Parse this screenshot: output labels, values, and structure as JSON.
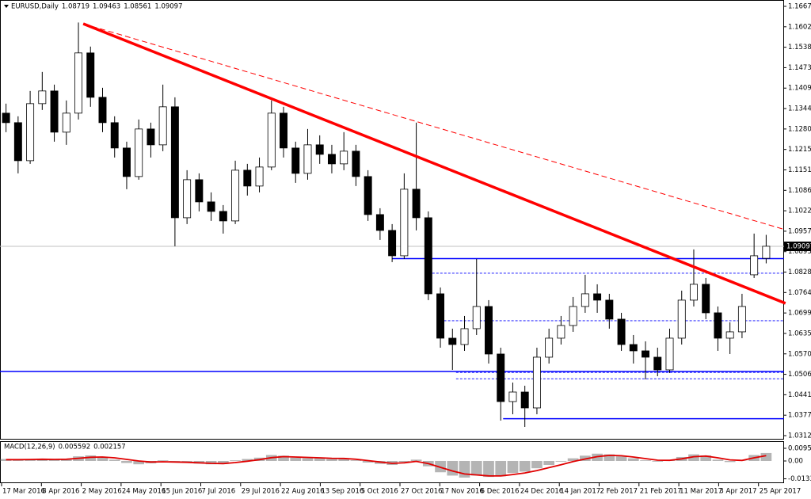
{
  "chart_data": {
    "type": "candlestick",
    "symbol": "EURUSD,Daily",
    "ohlc": [
      1.08719,
      1.09463,
      1.08561,
      1.09097
    ],
    "x_labels": [
      "17 Mar 2016",
      "8 Apr 2016",
      "2 May 2016",
      "24 May 2016",
      "15 Jun 2016",
      "7 Jul 2016",
      "29 Jul 2016",
      "22 Aug 2016",
      "13 Sep 2016",
      "5 Oct 2016",
      "27 Oct 2016",
      "17 Nov 2016",
      "6 Dec 2016",
      "24 Dec 2016",
      "14 Jan 2017",
      "2 Feb 2017",
      "21 Feb 2017",
      "11 Mar 2017",
      "3 Apr 2017",
      "25 Apr 2017"
    ],
    "candles": [
      [
        1.133,
        1.136,
        1.127,
        1.13
      ],
      [
        1.13,
        1.132,
        1.114,
        1.118
      ],
      [
        1.118,
        1.14,
        1.117,
        1.136
      ],
      [
        1.136,
        1.146,
        1.134,
        1.14
      ],
      [
        1.14,
        1.142,
        1.124,
        1.127
      ],
      [
        1.127,
        1.137,
        1.123,
        1.133
      ],
      [
        1.133,
        1.1616,
        1.131,
        1.152
      ],
      [
        1.152,
        1.154,
        1.135,
        1.138
      ],
      [
        1.138,
        1.141,
        1.127,
        1.13
      ],
      [
        1.13,
        1.132,
        1.119,
        1.122
      ],
      [
        1.122,
        1.124,
        1.109,
        1.113
      ],
      [
        1.113,
        1.131,
        1.112,
        1.128
      ],
      [
        1.128,
        1.13,
        1.119,
        1.123
      ],
      [
        1.123,
        1.142,
        1.121,
        1.135
      ],
      [
        1.135,
        1.138,
        1.091,
        1.1
      ],
      [
        1.1,
        1.115,
        1.098,
        1.112
      ],
      [
        1.112,
        1.114,
        1.102,
        1.105
      ],
      [
        1.105,
        1.108,
        1.099,
        1.102
      ],
      [
        1.102,
        1.104,
        1.095,
        1.099
      ],
      [
        1.099,
        1.118,
        1.098,
        1.115
      ],
      [
        1.115,
        1.117,
        1.107,
        1.11
      ],
      [
        1.11,
        1.119,
        1.108,
        1.116
      ],
      [
        1.116,
        1.137,
        1.115,
        1.133
      ],
      [
        1.133,
        1.135,
        1.119,
        1.122
      ],
      [
        1.122,
        1.124,
        1.111,
        1.114
      ],
      [
        1.114,
        1.128,
        1.112,
        1.123
      ],
      [
        1.123,
        1.126,
        1.117,
        1.12
      ],
      [
        1.12,
        1.123,
        1.114,
        1.117
      ],
      [
        1.117,
        1.127,
        1.115,
        1.121
      ],
      [
        1.121,
        1.123,
        1.11,
        1.113
      ],
      [
        1.113,
        1.115,
        1.099,
        1.101
      ],
      [
        1.101,
        1.103,
        1.093,
        1.096
      ],
      [
        1.096,
        1.098,
        1.086,
        1.088
      ],
      [
        1.088,
        1.114,
        1.087,
        1.109
      ],
      [
        1.109,
        1.13,
        1.096,
        1.1
      ],
      [
        1.1,
        1.102,
        1.074,
        1.076
      ],
      [
        1.076,
        1.078,
        1.059,
        1.062
      ],
      [
        1.062,
        1.065,
        1.052,
        1.06
      ],
      [
        1.06,
        1.069,
        1.058,
        1.065
      ],
      [
        1.065,
        1.087,
        1.063,
        1.072
      ],
      [
        1.072,
        1.074,
        1.054,
        1.057
      ],
      [
        1.057,
        1.059,
        1.036,
        1.042
      ],
      [
        1.042,
        1.048,
        1.038,
        1.045
      ],
      [
        1.045,
        1.047,
        1.034,
        1.04
      ],
      [
        1.04,
        1.059,
        1.038,
        1.056
      ],
      [
        1.056,
        1.065,
        1.054,
        1.062
      ],
      [
        1.062,
        1.069,
        1.06,
        1.066
      ],
      [
        1.066,
        1.075,
        1.064,
        1.072
      ],
      [
        1.072,
        1.082,
        1.07,
        1.076
      ],
      [
        1.076,
        1.079,
        1.07,
        1.074
      ],
      [
        1.074,
        1.076,
        1.065,
        1.068
      ],
      [
        1.068,
        1.07,
        1.058,
        1.06
      ],
      [
        1.06,
        1.063,
        1.054,
        1.058
      ],
      [
        1.058,
        1.061,
        1.049,
        1.056
      ],
      [
        1.056,
        1.059,
        1.05,
        1.052
      ],
      [
        1.052,
        1.065,
        1.051,
        1.062
      ],
      [
        1.062,
        1.077,
        1.06,
        1.074
      ],
      [
        1.074,
        1.09,
        1.072,
        1.079
      ],
      [
        1.079,
        1.081,
        1.068,
        1.07
      ],
      [
        1.07,
        1.072,
        1.058,
        1.062
      ],
      [
        1.062,
        1.067,
        1.057,
        1.064
      ],
      [
        1.064,
        1.076,
        1.062,
        1.072
      ],
      [
        1.082,
        1.095,
        1.081,
        1.088
      ],
      [
        1.0872,
        1.0946,
        1.0856,
        1.091
      ]
    ],
    "ylim": [
      1.03,
      1.1687
    ],
    "yticks": [
      {
        "value": 1.1667,
        "label": "1.16670"
      },
      1.16025,
      {
        "value": 1.1538,
        "label": "1.15380"
      },
      1.14735,
      {
        "value": 1.1409,
        "label": "1.14090"
      },
      1.13445,
      {
        "value": 1.128,
        "label": "1.12800"
      },
      1.12155,
      {
        "value": 1.1151,
        "label": "1.11510"
      },
      1.10865,
      {
        "value": 1.1022,
        "label": "1.10220"
      },
      1.09575,
      {
        "value": 1.0893,
        "label": "1.08930"
      },
      1.08285,
      {
        "value": 1.0764,
        "label": "1.07640"
      },
      1.06995,
      {
        "value": 1.0635,
        "label": "1.06350"
      },
      1.05705,
      {
        "value": 1.0506,
        "label": "1.05060"
      },
      1.04415,
      {
        "value": 1.0377,
        "label": "1.03770"
      },
      1.03125
    ],
    "trendlines": [
      {
        "from": [
          6.4,
          1.1612
        ],
        "to": [
          64.6,
          1.073
        ],
        "color": "#ff0000",
        "style": "solid"
      },
      {
        "from": [
          6.4,
          1.1612
        ],
        "to": [
          64.6,
          1.0962
        ],
        "color": "#ff0000",
        "style": "dashed"
      }
    ],
    "levels": [
      {
        "price": 1.0871,
        "from": 32,
        "color": "#0000ff",
        "style": "solid"
      },
      {
        "price": 1.0515,
        "from": -0.5,
        "color": "#0000ff",
        "style": "solid"
      },
      {
        "price": 1.0366,
        "from": 41.2,
        "color": "#0000ff",
        "style": "solid"
      },
      {
        "price": 1.0825,
        "from": 35,
        "color": "#0000ff",
        "style": "dashed"
      },
      {
        "price": 1.0675,
        "from": 36.3,
        "color": "#0000ff",
        "style": "dashed"
      },
      {
        "price": 1.0512,
        "from": 37.3,
        "color": "#0000ff",
        "style": "dashed"
      },
      {
        "price": 1.0492,
        "from": 37.3,
        "color": "#0000ff",
        "style": "dashed"
      }
    ],
    "macd": {
      "name": "MACD(12,26,9)",
      "main_value": 0.005592,
      "signal_value": 0.002157,
      "histogram": [
        0.0015,
        0.0008,
        0.0012,
        0.0018,
        0.001,
        0.0014,
        0.0035,
        0.0042,
        0.003,
        0.001,
        -0.0015,
        -0.0025,
        -0.0018,
        0.0005,
        -0.001,
        -0.0012,
        -0.002,
        -0.0025,
        -0.0022,
        0.0005,
        0.0015,
        0.0025,
        0.0045,
        0.004,
        0.0025,
        0.0022,
        0.002,
        0.0015,
        0.0018,
        0.0005,
        -0.0012,
        -0.0022,
        -0.003,
        -0.0008,
        0.001,
        -0.004,
        -0.0085,
        -0.011,
        -0.0125,
        -0.011,
        -0.012,
        -0.0115,
        -0.009,
        -0.008,
        -0.0055,
        -0.003,
        -0.0005,
        0.002,
        0.004,
        0.0055,
        0.005,
        0.0035,
        0.002,
        0.0005,
        -0.0005,
        0.0005,
        0.003,
        0.005,
        0.0042,
        0.001,
        -0.0008,
        0.0002,
        0.0045,
        0.006
      ],
      "signal": [
        0.001,
        0.001,
        0.0011,
        0.0013,
        0.0012,
        0.0013,
        0.002,
        0.0028,
        0.003,
        0.0024,
        0.0012,
        0.0,
        -0.0008,
        -0.0006,
        -0.0008,
        -0.001,
        -0.0014,
        -0.0018,
        -0.002,
        -0.0012,
        -0.0002,
        0.001,
        0.0025,
        0.0033,
        0.003,
        0.0027,
        0.0024,
        0.002,
        0.0019,
        0.0013,
        0.0003,
        -0.0008,
        -0.0018,
        -0.0014,
        -0.0003,
        -0.002,
        -0.0048,
        -0.0075,
        -0.0098,
        -0.0105,
        -0.0112,
        -0.0113,
        -0.0102,
        -0.009,
        -0.0072,
        -0.005,
        -0.0028,
        -0.0005,
        0.0015,
        0.0033,
        0.0042,
        0.0039,
        0.003,
        0.0018,
        0.0006,
        0.0005,
        0.0016,
        0.0032,
        0.0037,
        0.0024,
        0.0008,
        0.0004,
        0.0024,
        0.004
      ],
      "histogram_color": "#b4b4b4",
      "signal_color": "#e00000",
      "ylim": [
        -0.0161,
        0.0143
      ],
      "yticks": [
        {
          "value": 0.009527,
          "label": "0.009527"
        },
        {
          "value": 0,
          "label": "0.00"
        },
        -0.013399
      ]
    }
  }
}
